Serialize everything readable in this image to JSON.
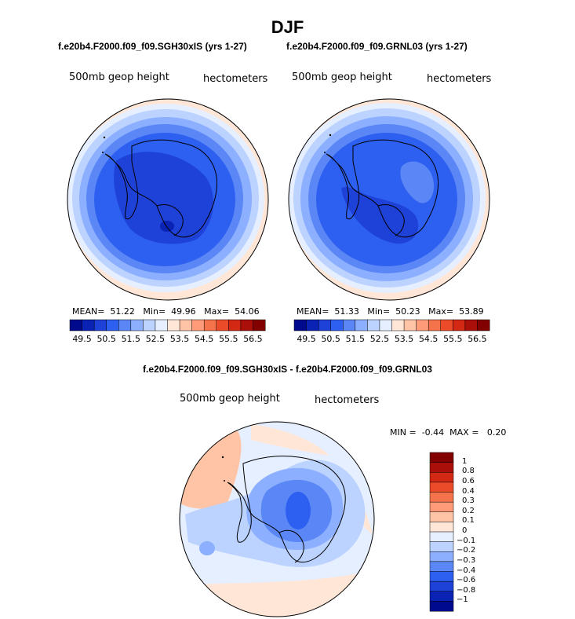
{
  "page": {
    "title": "DJF"
  },
  "panels": [
    {
      "case": "f.e20b4.F2000.f09_f09.SGH30xIS (yrs 1-27)",
      "variable": "500mb geop height",
      "units": "hectometers",
      "stats": {
        "mean_label": "MEAN=",
        "mean": "51.22",
        "min_label": "Min=",
        "min": "49.96",
        "max_label": "Max=",
        "max": "54.06"
      }
    },
    {
      "case": "f.e20b4.F2000.f09_f09.GRNL03 (yrs 1-27)",
      "variable": "500mb geop height",
      "units": "hectometers",
      "stats": {
        "mean_label": "MEAN=",
        "mean": "51.33",
        "min_label": "Min=",
        "min": "50.23",
        "max_label": "Max=",
        "max": "53.89"
      }
    }
  ],
  "colorbar": {
    "ticks": [
      "49.5",
      "50.5",
      "51.5",
      "52.5",
      "53.5",
      "54.5",
      "55.5",
      "56.5"
    ],
    "colors": [
      "#000a8c",
      "#0a23b4",
      "#1e41d7",
      "#2d5ff0",
      "#5a87f5",
      "#8cafff",
      "#bcd2ff",
      "#e6efff",
      "#ffe6d7",
      "#ffc3a5",
      "#ff9b78",
      "#f5734b",
      "#eb4b28",
      "#d22814",
      "#aa0f0a",
      "#820000"
    ]
  },
  "diff": {
    "title": "f.e20b4.F2000.f09_f09.SGH30xIS - f.e20b4.F2000.f09_f09.GRNL03",
    "variable": "500mb geop height",
    "units": "hectometers",
    "min_label": "MIN =",
    "min": "-0.44",
    "max_label": "MAX =",
    "max": "0.20",
    "colorbar": {
      "labels": [
        "1",
        "0.8",
        "0.6",
        "0.4",
        "0.3",
        "0.2",
        "0.1",
        "0",
        "−0.1",
        "−0.2",
        "−0.3",
        "−0.4",
        "−0.6",
        "−0.8",
        "−1"
      ],
      "colors": [
        "#820000",
        "#aa0f0a",
        "#d22814",
        "#eb4b28",
        "#f5734b",
        "#ff9b78",
        "#ffc3a5",
        "#ffe6d7",
        "#e6efff",
        "#bcd2ff",
        "#8cafff",
        "#5a87f5",
        "#2d5ff0",
        "#1e41d7",
        "#0a23b4",
        "#000a8c"
      ]
    }
  }
}
